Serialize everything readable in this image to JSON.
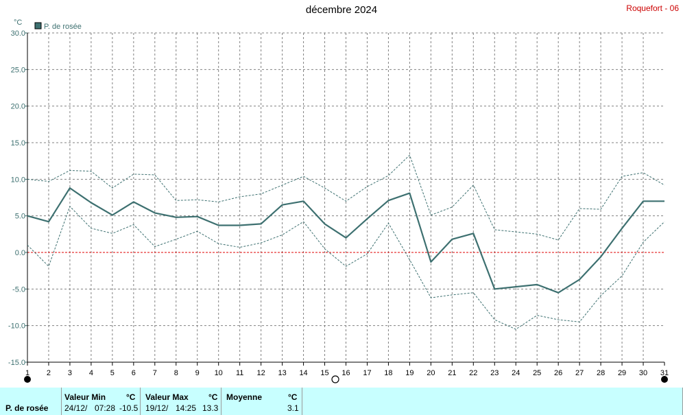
{
  "title": "décembre 2024",
  "station": "Roquefort - 06",
  "chart_data": {
    "type": "line",
    "unit_label": "°C",
    "x": [
      1,
      2,
      3,
      4,
      5,
      6,
      7,
      8,
      9,
      10,
      11,
      12,
      13,
      14,
      15,
      16,
      17,
      18,
      19,
      20,
      21,
      22,
      23,
      24,
      25,
      26,
      27,
      28,
      29,
      30,
      31
    ],
    "xlim": [
      1,
      31
    ],
    "ylim": [
      -15,
      30
    ],
    "yticks": [
      30.0,
      25.0,
      20.0,
      15.0,
      10.0,
      5.0,
      0.0,
      -5.0,
      -10.0,
      -15.0
    ],
    "ytick_labels": [
      "30.0",
      "25.0",
      "20.0",
      "15.0",
      "10.0",
      "5.0",
      "0.0",
      "-5.0",
      "-10.0",
      "-15.0"
    ],
    "grid": true,
    "legend_position": "top-left",
    "zero_line_color": "#e00000",
    "series": [
      {
        "name": "P. de rosée",
        "color": "#3d7070",
        "style": "solid",
        "values": [
          5.0,
          4.2,
          8.8,
          6.8,
          5.1,
          6.9,
          5.4,
          4.8,
          4.9,
          3.7,
          3.7,
          3.9,
          6.5,
          7.0,
          3.9,
          2.0,
          4.6,
          7.1,
          8.1,
          -1.3,
          1.8,
          2.6,
          -5.0,
          -4.7,
          -4.4,
          -5.5,
          -3.7,
          -0.6,
          3.3,
          7.0,
          7.0
        ]
      },
      {
        "role": "max",
        "color": "#3d7070",
        "style": "dashed",
        "values": [
          10.0,
          9.7,
          11.2,
          11.1,
          8.8,
          10.7,
          10.6,
          7.1,
          7.2,
          6.9,
          7.6,
          8.0,
          9.2,
          10.4,
          8.8,
          7.0,
          9.0,
          10.5,
          13.3,
          5.1,
          6.2,
          9.2,
          3.1,
          2.8,
          2.5,
          1.7,
          6.0,
          5.9,
          10.4,
          10.9,
          9.2
        ]
      },
      {
        "role": "min",
        "color": "#3d7070",
        "style": "dashed",
        "values": [
          1.0,
          -1.9,
          6.3,
          3.3,
          2.6,
          3.8,
          0.8,
          1.8,
          2.9,
          1.2,
          0.7,
          1.3,
          2.4,
          4.2,
          0.5,
          -1.9,
          -0.2,
          4.0,
          -1.0,
          -6.2,
          -5.8,
          -5.5,
          -9.2,
          -10.5,
          -8.6,
          -9.2,
          -9.5,
          -5.9,
          -3.2,
          1.4,
          4.2
        ]
      }
    ],
    "moon_phases": [
      {
        "day": 1,
        "phase": "new-moon"
      },
      {
        "day": 15.5,
        "phase": "full-moon"
      },
      {
        "day": 31,
        "phase": "new-moon"
      }
    ]
  },
  "summary": {
    "label": "P. de rosée",
    "min_header": "Valeur Min",
    "min_unit": "°C",
    "min_date": "24/12/",
    "min_time": "07:28",
    "min_value": "-10.5",
    "max_header": "Valeur Max",
    "max_unit": "°C",
    "max_date": "19/12/",
    "max_time": "14:25",
    "max_value": "13.3",
    "avg_header": "Moyenne",
    "avg_unit": "°C",
    "avg_value": "3.1"
  }
}
